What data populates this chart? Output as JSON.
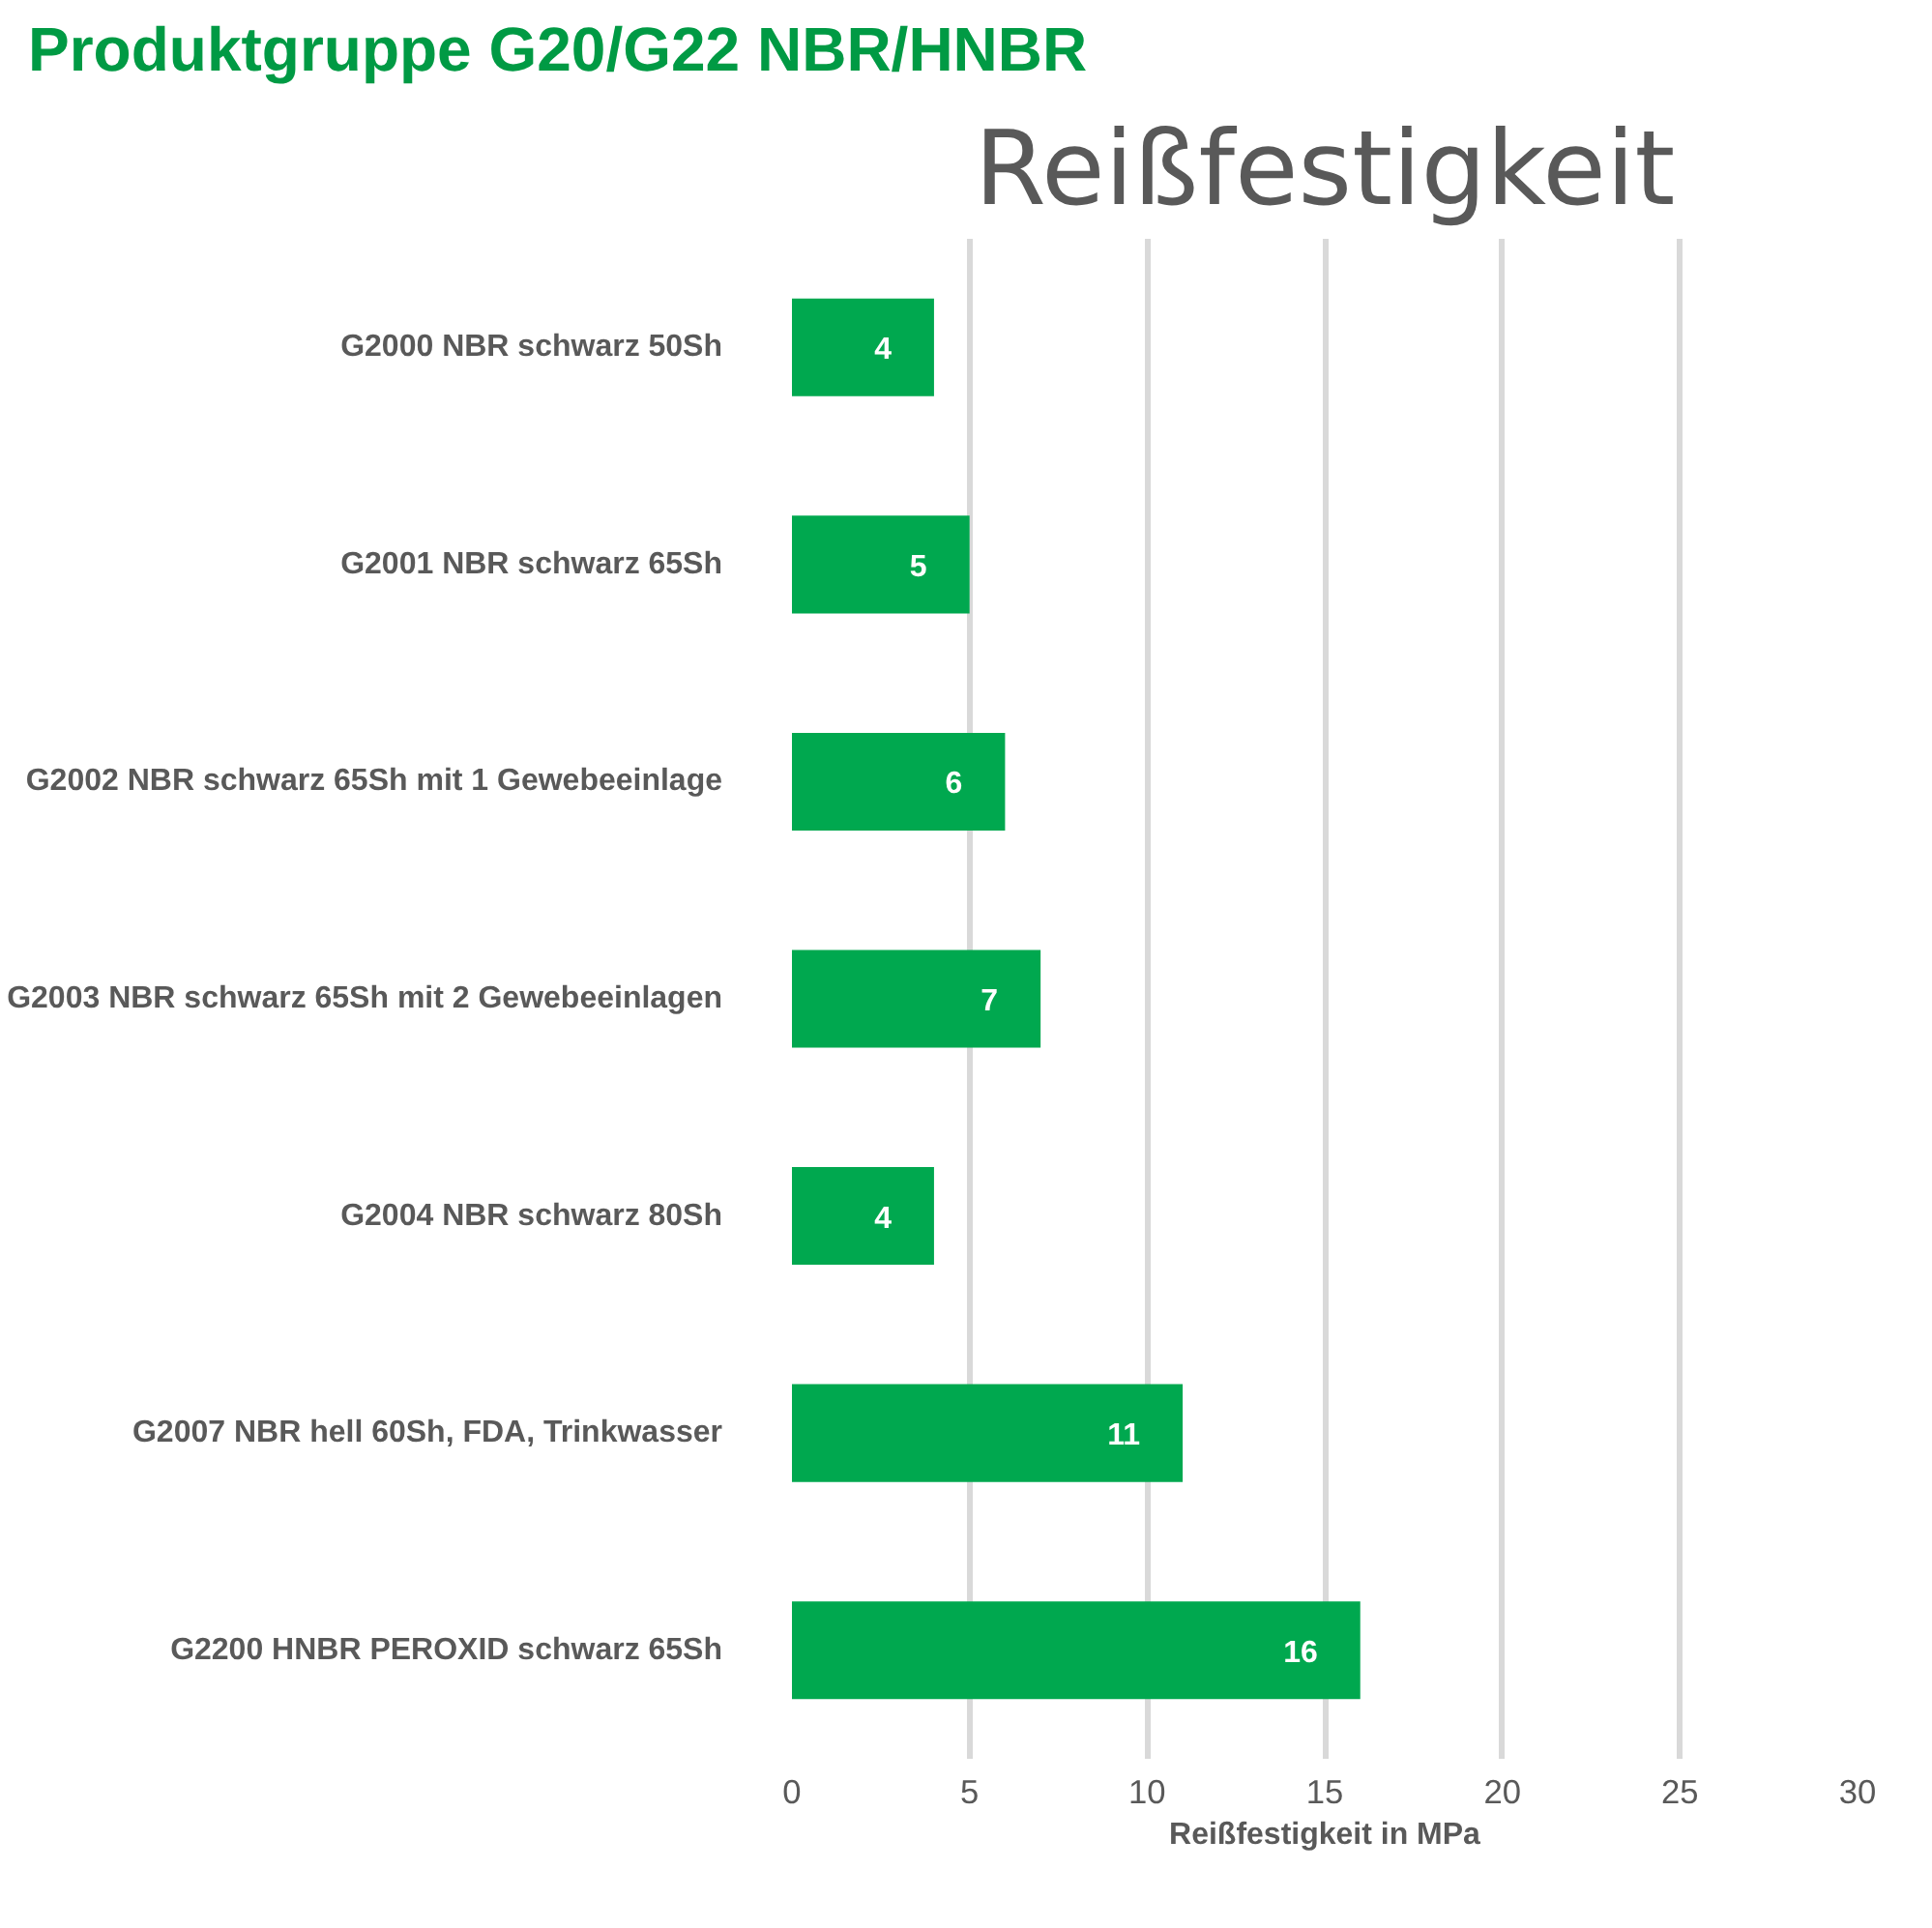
{
  "chart_data": {
    "type": "bar",
    "orientation": "horizontal",
    "title": "Produktgruppe G20/G22 NBR/HNBR",
    "subtitle": "Reißfestigkeit",
    "xlabel": "Reißfestigkeit in MPa",
    "categories": [
      "G2000 NBR schwarz 50Sh",
      "G2001 NBR schwarz 65Sh",
      "G2002 NBR schwarz 65Sh mit 1 Gewebeeinlage",
      "G2003 NBR schwarz 65Sh mit 2 Gewebeeinlagen",
      "G2004 NBR schwarz 80Sh",
      "G2007 NBR hell 60Sh, FDA, Trinkwasser",
      "G2200 HNBR PEROXID schwarz 65Sh"
    ],
    "values": [
      4,
      5,
      6,
      7,
      4,
      11,
      16
    ],
    "color": "#00a84f",
    "xlim": [
      0,
      30
    ],
    "xticks": [
      0,
      5,
      10,
      15,
      20,
      25,
      30
    ],
    "grid": "x",
    "data_labels": true
  }
}
